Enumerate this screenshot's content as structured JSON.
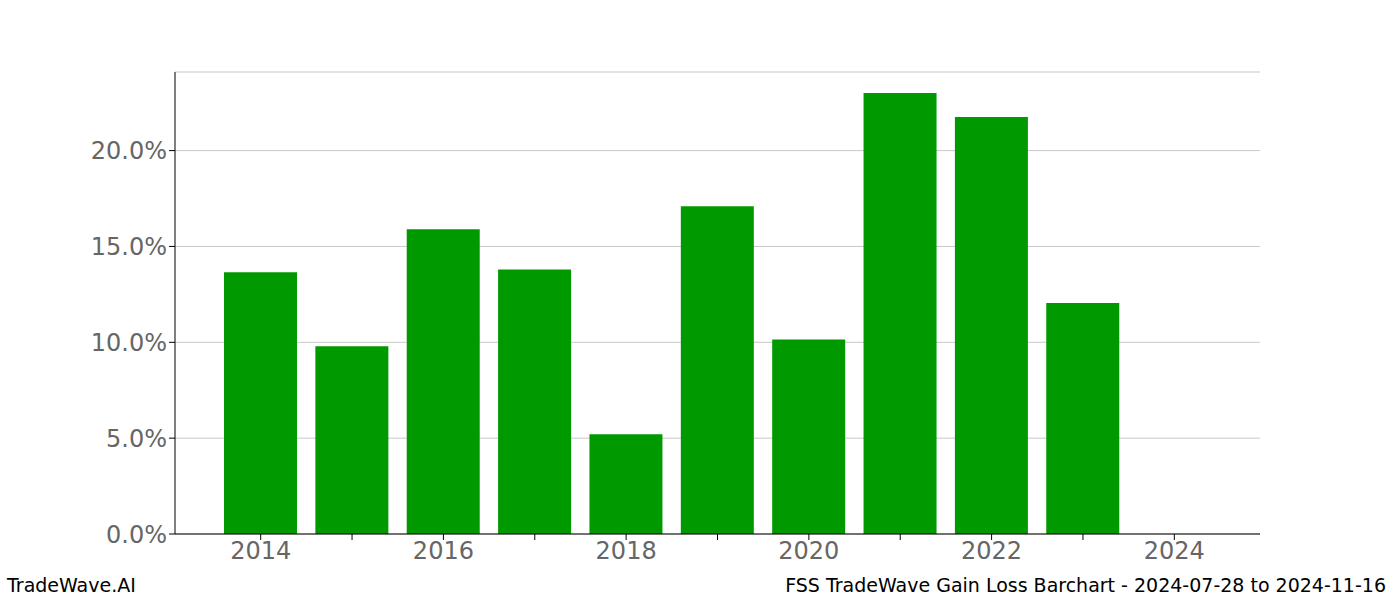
{
  "chart_data": {
    "type": "bar",
    "title": "FSS TradeWave Gain Loss Barchart - 2024-07-28 to 2024-11-16",
    "annotations": [
      "TradeWave.AI"
    ],
    "categories": [
      "2014",
      null,
      "2016",
      null,
      "2018",
      null,
      "2020",
      null,
      "2022",
      null,
      "2024"
    ],
    "values": [
      13.65,
      9.8,
      15.9,
      13.8,
      5.2,
      17.1,
      10.15,
      23.0,
      21.75,
      12.05,
      null
    ],
    "color": "#009900",
    "ylim": [
      0,
      24.1
    ],
    "yticks": [
      {
        "value": 0,
        "label": "0.0%"
      },
      {
        "value": 5,
        "label": "5.0%"
      },
      {
        "value": 10,
        "label": "10.0%"
      },
      {
        "value": 15,
        "label": "15.0%"
      },
      {
        "value": 20,
        "label": "20.0%"
      }
    ],
    "grid": true
  }
}
